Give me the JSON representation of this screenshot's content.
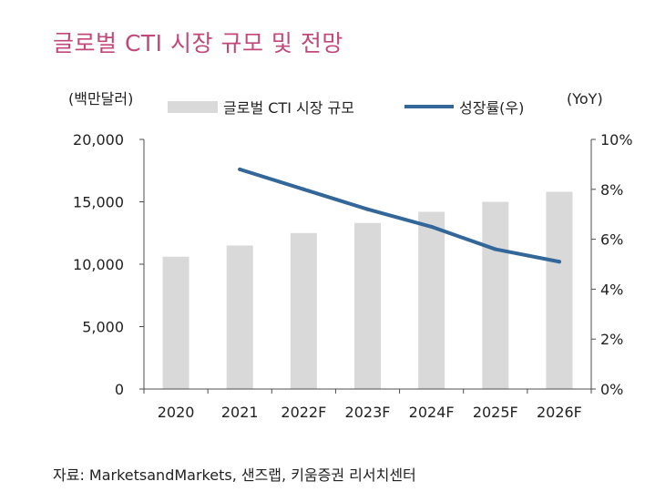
{
  "title": "글로벌 CTI 시장 규모 및 전망",
  "source": "자료: MarketsandMarkets, 샌즈랩, 키움증권 리서치센터",
  "colors": {
    "title": "#c2487a",
    "bar": "#d9d9d9",
    "line": "#336699",
    "axis": "#4d4d4d"
  },
  "chart_data": {
    "type": "bar+line",
    "categories": [
      "2020",
      "2021",
      "2022F",
      "2023F",
      "2024F",
      "2025F",
      "2026F"
    ],
    "series": [
      {
        "name": "글로벌 CTI 시장 규모",
        "type": "bar",
        "axis": "left",
        "values": [
          10600,
          11500,
          12500,
          13300,
          14200,
          15000,
          15800
        ]
      },
      {
        "name": "성장률(우)",
        "type": "line",
        "axis": "right",
        "values": [
          null,
          8.8,
          8.0,
          7.2,
          6.5,
          5.6,
          5.1
        ]
      }
    ],
    "left_axis": {
      "label": "(백만달러)",
      "ylim": [
        0,
        20000
      ],
      "ticks": [
        0,
        5000,
        10000,
        15000,
        20000
      ],
      "tick_labels": [
        "0",
        "5,000",
        "10,000",
        "15,000",
        "20,000"
      ]
    },
    "right_axis": {
      "label": "(YoY)",
      "ylim": [
        0,
        10
      ],
      "ticks": [
        0,
        2,
        4,
        6,
        8,
        10
      ],
      "tick_labels": [
        "0%",
        "2%",
        "4%",
        "6%",
        "8%",
        "10%"
      ]
    },
    "legend_position": "top"
  }
}
